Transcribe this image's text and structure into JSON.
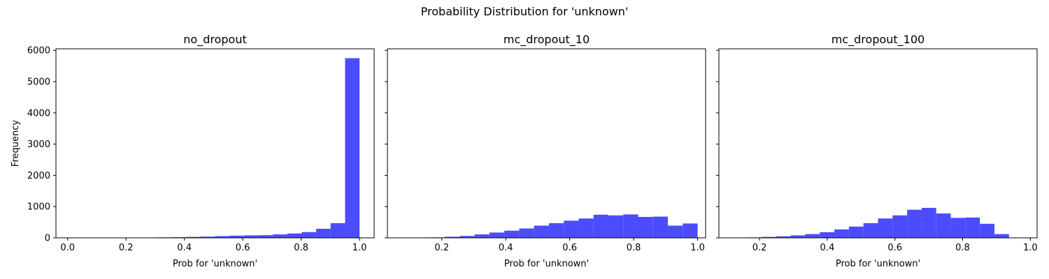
{
  "figure_title": "Probability Distribution for 'unknown'",
  "chart_data": [
    {
      "type": "bar",
      "title": "no_dropout",
      "xlabel": "Prob for 'unknown'",
      "ylabel": "Frequency",
      "xlim": [
        -0.04,
        1.05
      ],
      "ylim": [
        0,
        6050
      ],
      "xticks": [
        0.0,
        0.2,
        0.4,
        0.6,
        0.8,
        1.0
      ],
      "xtick_labels": [
        "0.0",
        "0.2",
        "0.4",
        "0.6",
        "0.8",
        "1.0"
      ],
      "yticks": [
        0,
        1000,
        2000,
        3000,
        4000,
        5000,
        6000
      ],
      "ytick_labels": [
        "0",
        "1000",
        "2000",
        "3000",
        "4000",
        "5000",
        "6000"
      ],
      "show_ytick_labels": true,
      "color": "#4c4cff",
      "bin_edges": [
        0.01,
        0.0595,
        0.109,
        0.1585,
        0.208,
        0.2575,
        0.307,
        0.3565,
        0.406,
        0.4555,
        0.505,
        0.5545,
        0.604,
        0.6535,
        0.703,
        0.7525,
        0.802,
        0.8515,
        0.901,
        0.9505,
        1.0
      ],
      "values": [
        10,
        5,
        5,
        8,
        10,
        10,
        15,
        20,
        30,
        40,
        55,
        70,
        80,
        85,
        110,
        140,
        185,
        290,
        470,
        5750
      ]
    },
    {
      "type": "bar",
      "title": "mc_dropout_10",
      "xlabel": "Prob for 'unknown'",
      "ylabel": "",
      "xlim": [
        0.03,
        1.025
      ],
      "ylim": [
        0,
        6050
      ],
      "xticks": [
        0.2,
        0.4,
        0.6,
        0.8,
        1.0
      ],
      "xtick_labels": [
        "0.2",
        "0.4",
        "0.6",
        "0.8",
        "1.0"
      ],
      "yticks": [
        0,
        1000,
        2000,
        3000,
        4000,
        5000,
        6000
      ],
      "ytick_labels": [
        "0",
        "1000",
        "2000",
        "3000",
        "4000",
        "5000",
        "6000"
      ],
      "show_ytick_labels": false,
      "color": "#4c4cff",
      "bin_edges": [
        0.07,
        0.1165,
        0.163,
        0.2095,
        0.256,
        0.3025,
        0.349,
        0.3955,
        0.442,
        0.4885,
        0.535,
        0.5815,
        0.628,
        0.6745,
        0.721,
        0.7675,
        0.814,
        0.8605,
        0.907,
        0.9535,
        1.0
      ],
      "values": [
        5,
        10,
        15,
        35,
        60,
        110,
        170,
        230,
        300,
        390,
        470,
        550,
        620,
        740,
        720,
        750,
        670,
        680,
        390,
        460
      ]
    },
    {
      "type": "bar",
      "title": "mc_dropout_100",
      "xlabel": "Prob for 'unknown'",
      "ylabel": "",
      "xlim": [
        0.08,
        1.02
      ],
      "ylim": [
        0,
        6050
      ],
      "xticks": [
        0.2,
        0.4,
        0.6,
        0.8,
        1.0
      ],
      "xtick_labels": [
        "0.2",
        "0.4",
        "0.6",
        "0.8",
        "1.0"
      ],
      "yticks": [
        0,
        1000,
        2000,
        3000,
        4000,
        5000,
        6000
      ],
      "ytick_labels": [
        "0",
        "1000",
        "2000",
        "3000",
        "4000",
        "5000",
        "6000"
      ],
      "show_ytick_labels": false,
      "color": "#4c4cff",
      "bin_edges": [
        0.12,
        0.163,
        0.206,
        0.249,
        0.292,
        0.335,
        0.378,
        0.421,
        0.464,
        0.507,
        0.55,
        0.593,
        0.636,
        0.679,
        0.722,
        0.765,
        0.808,
        0.851,
        0.894,
        0.937,
        0.98
      ],
      "values": [
        5,
        15,
        30,
        50,
        80,
        120,
        180,
        270,
        360,
        470,
        620,
        720,
        900,
        960,
        780,
        640,
        650,
        450,
        120,
        10
      ]
    }
  ]
}
